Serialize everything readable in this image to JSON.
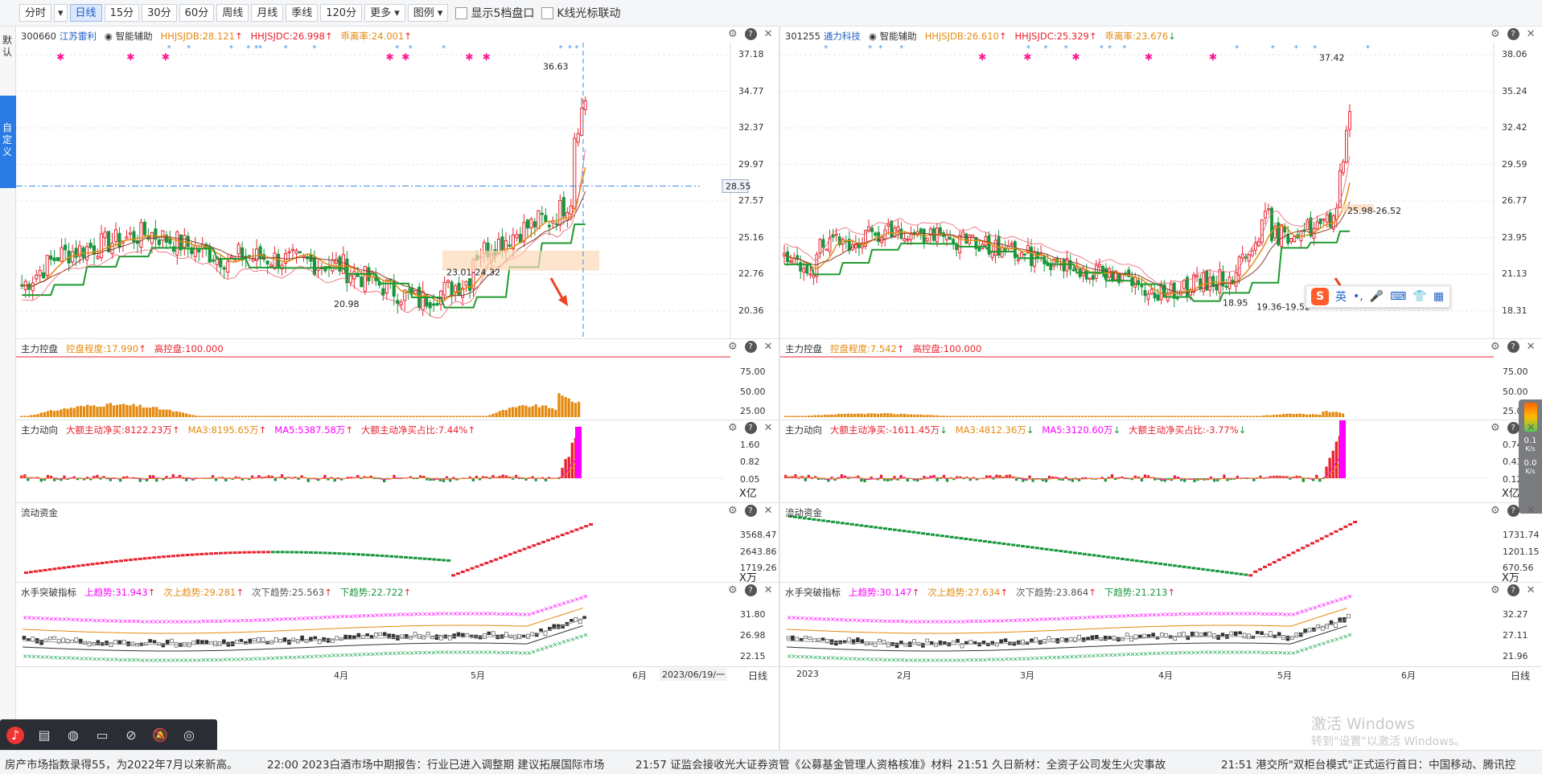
{
  "toolbar": {
    "items": [
      "分时",
      "日线",
      "15分",
      "30分",
      "60分",
      "周线",
      "月线",
      "季线",
      "120分",
      "更多",
      "图例"
    ],
    "active_index": 1,
    "check1": "显示5档盘口",
    "check2": "K线光标联动"
  },
  "leftbar": {
    "default": "默认",
    "custom": "自定义"
  },
  "colors": {
    "up": "#e8232f",
    "down": "#17963d",
    "magenta": "#ff00ff",
    "orange": "#e48a12",
    "green_line": "#1e9a2f",
    "blue": "#1f61c5"
  },
  "left": {
    "code": "300660",
    "name": "江苏雷利",
    "assist": "智能辅助",
    "ind1": "HHJSJDB:28.121",
    "ind2": "HHJSJDC:26.998",
    "ind3": "乖离率:24.001",
    "price_labels": [
      "37.18",
      "34.77",
      "32.37",
      "29.97",
      "27.57",
      "25.16",
      "22.76",
      "20.36"
    ],
    "price_range": [
      19.6,
      37.8
    ],
    "current_price": "28.55",
    "high_label": "36.63",
    "low_label": "20.98",
    "range_label": "23.01-24.32",
    "sub1": {
      "title": "主力控盘",
      "i1": "控盘程度:17.990",
      "i2": "高控盘:100.000",
      "labels": [
        "75.00",
        "50.00",
        "25.00"
      ]
    },
    "sub2": {
      "title": "主力动向",
      "i1": "大额主动净买:8122.23万",
      "i2": "MA3:8195.65万",
      "i3": "MA5:5387.58万",
      "i4": "大额主动净买占比:7.44%",
      "labels": [
        "1.60",
        "0.82",
        "0.05"
      ],
      "unit": "X亿"
    },
    "sub3": {
      "title": "流动资金",
      "labels": [
        "3568.47",
        "2643.86",
        "1719.26"
      ],
      "unit": "X万"
    },
    "sub4": {
      "title": "水手突破指标",
      "i1": "上趋势:31.943",
      "i2": "次上趋势:29.281",
      "i3": "次下趋势:25.563",
      "i4": "下趋势:22.722",
      "labels": [
        "31.80",
        "26.98",
        "22.15"
      ]
    },
    "dates": [
      "4月",
      "5月",
      "6月"
    ],
    "cursor_date": "2023/06/19/一",
    "period": "日线"
  },
  "right": {
    "code": "301255",
    "name": "通力科技",
    "assist": "智能辅助",
    "ind1": "HHJSJDB:26.610",
    "ind2": "HHJSJDC:25.329",
    "ind3": "乖离率:23.676",
    "price_labels": [
      "38.06",
      "35.24",
      "32.42",
      "29.59",
      "26.77",
      "23.95",
      "21.13",
      "18.31"
    ],
    "price_range": [
      17.6,
      38.8
    ],
    "high_label": "37.42",
    "low_label": "18.95",
    "range_label": "19.36-19.52",
    "band_label": "25.98-26.52",
    "sub1": {
      "title": "主力控盘",
      "i1": "控盘程度:7.542",
      "i2": "高控盘:100.000",
      "labels": [
        "75.00",
        "50.00",
        "25.00"
      ]
    },
    "sub2": {
      "title": "主力动向",
      "i1": "大额主动净买:-1611.45万",
      "i2": "MA3:4812.36万",
      "i3": "MA5:3120.60万",
      "i4": "大额主动净买占比:-3.77%",
      "labels": [
        "0.74",
        "0.43",
        "0.12"
      ],
      "unit": "X亿"
    },
    "sub3": {
      "title": "流动资金",
      "labels": [
        "1731.74",
        "1201.15",
        "670.56"
      ],
      "unit": "X万"
    },
    "sub4": {
      "title": "水手突破指标",
      "i1": "上趋势:30.147",
      "i2": "次上趋势:27.634",
      "i3": "次下趋势:23.864",
      "i4": "下趋势:21.213",
      "labels": [
        "32.27",
        "27.11",
        "21.96"
      ]
    },
    "dates": [
      "2023",
      "2月",
      "3月",
      "4月",
      "5月",
      "6月"
    ],
    "period": "日线"
  },
  "ime": {
    "lang": "英"
  },
  "speed": {
    "up": "0.1",
    "up_unit": "K/s",
    "down": "0.0",
    "down_unit": "K/s"
  },
  "watermark": {
    "line1": "激活 Windows",
    "line2": "转到\"设置\"以激活 Windows。"
  },
  "ticker": [
    "房产市场指数录得55，为2022年7月以来新高。",
    "22:00 2023白酒市场中期报告：行业已进入调整期 建议拓展国际市场",
    "21:57 证监会接收光大证券资管《公募基金管理人资格核准》材料",
    "21:51 久日新材：全资子公司发生火灾事故",
    "21:51 港交所\"双柜台模式\"正式运行首日：中国移动、腾讯控"
  ]
}
